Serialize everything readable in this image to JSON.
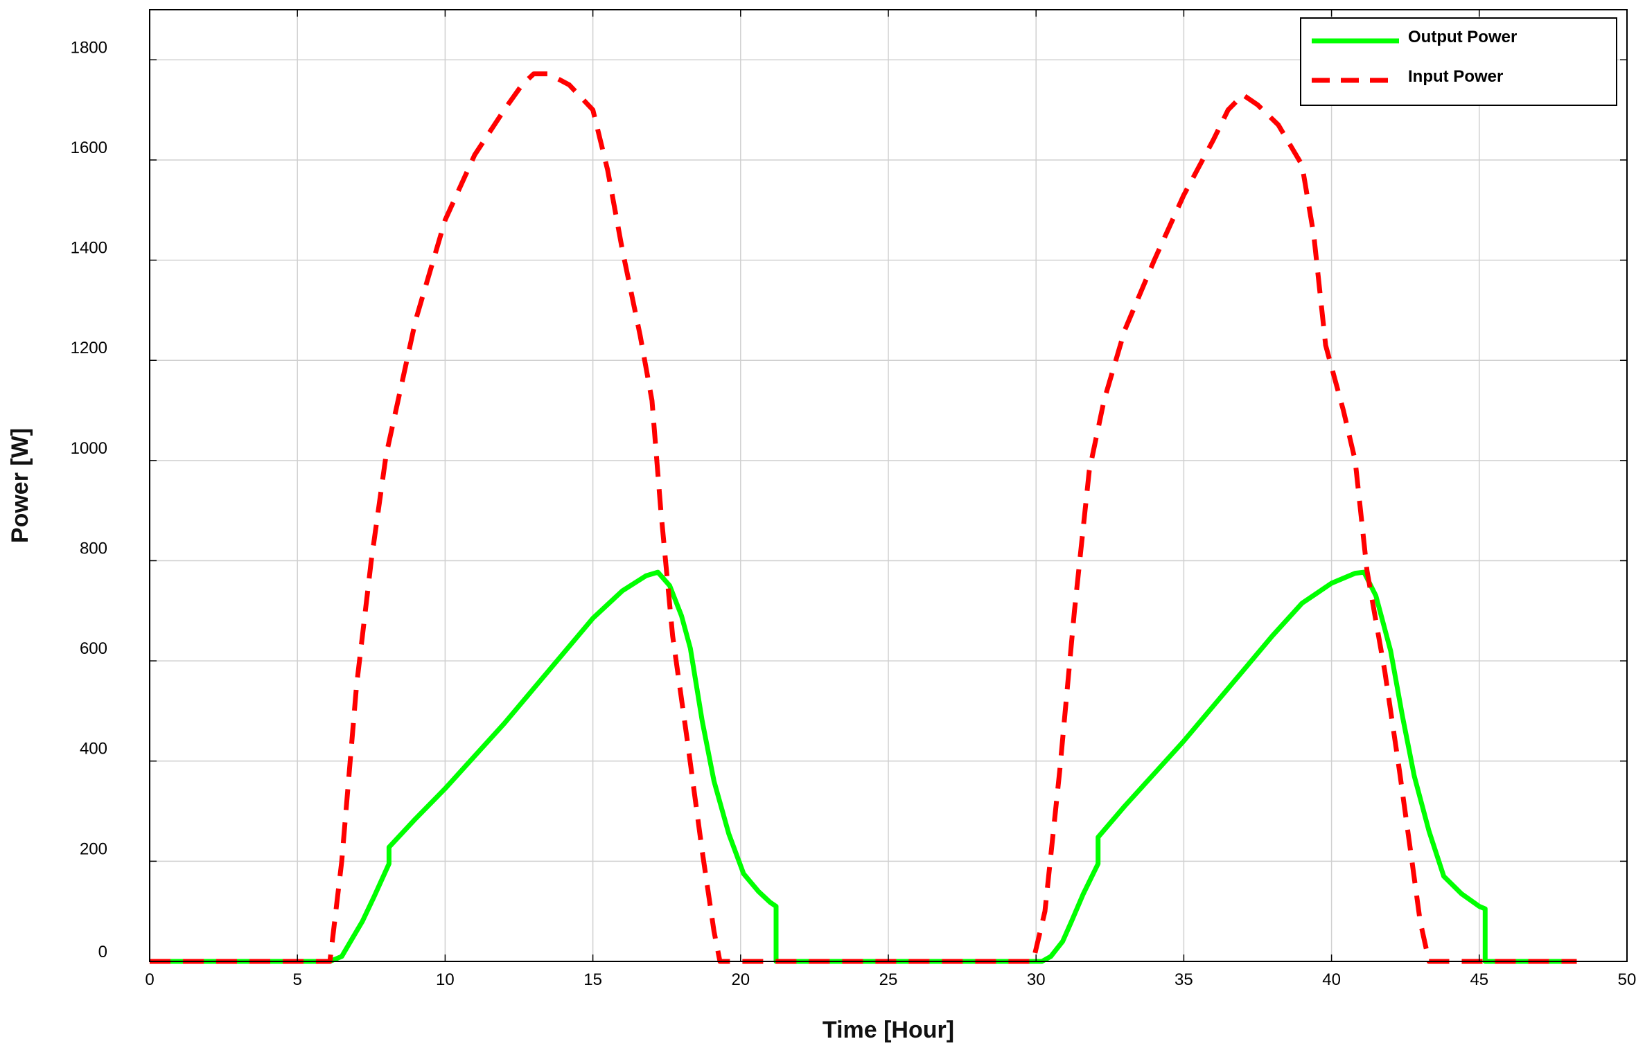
{
  "chart_data": {
    "type": "line",
    "xlabel": "Time [Hour]",
    "ylabel": "Power [W]",
    "xlim": [
      0,
      50
    ],
    "ylim": [
      0,
      1900
    ],
    "x_ticks": [
      0,
      5,
      10,
      15,
      20,
      25,
      30,
      35,
      40,
      45,
      50
    ],
    "y_ticks": [
      0,
      200,
      400,
      600,
      800,
      1000,
      1200,
      1400,
      1600,
      1800
    ],
    "grid": true,
    "legend_position": "top-right",
    "series": [
      {
        "name": "Output Power",
        "color": "#00ff00",
        "style": "solid",
        "points": [
          [
            0,
            0
          ],
          [
            6.1,
            0
          ],
          [
            6.5,
            10
          ],
          [
            6.9,
            50
          ],
          [
            7.2,
            80
          ],
          [
            7.6,
            130
          ],
          [
            8.1,
            195
          ],
          [
            8.1,
            228
          ],
          [
            9.0,
            285
          ],
          [
            10.0,
            345
          ],
          [
            11.0,
            410
          ],
          [
            12.0,
            475
          ],
          [
            13.0,
            545
          ],
          [
            14.0,
            615
          ],
          [
            15.0,
            685
          ],
          [
            16.0,
            740
          ],
          [
            16.8,
            770
          ],
          [
            17.2,
            777
          ],
          [
            17.6,
            750
          ],
          [
            18.0,
            690
          ],
          [
            18.3,
            625
          ],
          [
            18.7,
            480
          ],
          [
            19.1,
            360
          ],
          [
            19.6,
            255
          ],
          [
            20.1,
            175
          ],
          [
            20.6,
            140
          ],
          [
            21.0,
            118
          ],
          [
            21.2,
            110
          ],
          [
            21.2,
            0
          ],
          [
            30.2,
            0
          ],
          [
            30.5,
            10
          ],
          [
            30.9,
            40
          ],
          [
            31.2,
            80
          ],
          [
            31.6,
            135
          ],
          [
            32.1,
            195
          ],
          [
            32.1,
            248
          ],
          [
            33.0,
            310
          ],
          [
            34.0,
            375
          ],
          [
            35.0,
            440
          ],
          [
            36.0,
            510
          ],
          [
            37.0,
            580
          ],
          [
            38.0,
            650
          ],
          [
            39.0,
            715
          ],
          [
            40.0,
            755
          ],
          [
            40.8,
            775
          ],
          [
            41.1,
            777
          ],
          [
            41.5,
            730
          ],
          [
            42.0,
            620
          ],
          [
            42.4,
            490
          ],
          [
            42.8,
            370
          ],
          [
            43.3,
            260
          ],
          [
            43.8,
            170
          ],
          [
            44.4,
            135
          ],
          [
            45.0,
            110
          ],
          [
            45.2,
            105
          ],
          [
            45.2,
            0
          ],
          [
            48.3,
            0
          ]
        ]
      },
      {
        "name": "Input Power",
        "color": "#ff0000",
        "style": "dashed",
        "points": [
          [
            0,
            0
          ],
          [
            6.1,
            0
          ],
          [
            6.5,
            200
          ],
          [
            7.0,
            550
          ],
          [
            7.5,
            800
          ],
          [
            8.0,
            1010
          ],
          [
            9.0,
            1280
          ],
          [
            10.0,
            1480
          ],
          [
            11.0,
            1610
          ],
          [
            12.0,
            1700
          ],
          [
            12.6,
            1750
          ],
          [
            13.0,
            1772
          ],
          [
            13.5,
            1772
          ],
          [
            14.2,
            1750
          ],
          [
            15.0,
            1700
          ],
          [
            15.5,
            1580
          ],
          [
            16.0,
            1420
          ],
          [
            16.6,
            1250
          ],
          [
            17.0,
            1120
          ],
          [
            17.3,
            900
          ],
          [
            17.7,
            650
          ],
          [
            18.2,
            440
          ],
          [
            18.7,
            220
          ],
          [
            19.1,
            60
          ],
          [
            19.3,
            0
          ],
          [
            20.0,
            0
          ],
          [
            29.9,
            0
          ],
          [
            30.3,
            100
          ],
          [
            30.8,
            380
          ],
          [
            31.3,
            700
          ],
          [
            31.8,
            980
          ],
          [
            32.3,
            1120
          ],
          [
            33.0,
            1260
          ],
          [
            34.0,
            1400
          ],
          [
            35.0,
            1530
          ],
          [
            36.0,
            1640
          ],
          [
            36.5,
            1700
          ],
          [
            37.0,
            1730
          ],
          [
            37.5,
            1710
          ],
          [
            38.2,
            1670
          ],
          [
            39.0,
            1590
          ],
          [
            39.4,
            1450
          ],
          [
            39.8,
            1230
          ],
          [
            40.4,
            1100
          ],
          [
            40.8,
            1000
          ],
          [
            41.2,
            780
          ],
          [
            41.8,
            580
          ],
          [
            42.3,
            380
          ],
          [
            42.7,
            210
          ],
          [
            43.0,
            80
          ],
          [
            43.3,
            0
          ],
          [
            48.3,
            0
          ]
        ]
      }
    ]
  }
}
